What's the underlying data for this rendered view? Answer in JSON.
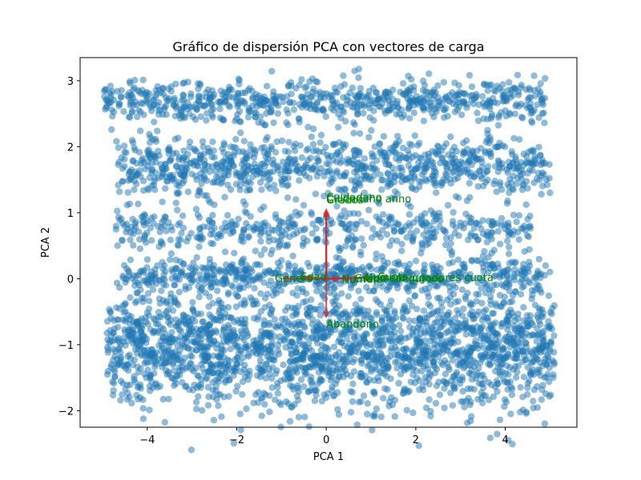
{
  "chart_data": {
    "type": "scatter",
    "title": "Gráfico de dispersión PCA con vectores de carga",
    "xlabel": "PCA 1",
    "ylabel": "PCA 2",
    "xlim": [
      -5.5,
      5.6
    ],
    "ylim": [
      -2.25,
      3.35
    ],
    "xticks": [
      -4,
      -2,
      0,
      2,
      4
    ],
    "yticks": [
      -2,
      -1,
      0,
      1,
      2,
      3
    ],
    "grid": false,
    "colors": {
      "points": "#1f77b4",
      "arrows": "#d62728",
      "labels": "#008000"
    },
    "point_bands": [
      {
        "y_center": 2.7,
        "y_spread": 0.16,
        "x_min": -5.0,
        "x_max": 4.9,
        "count": 700
      },
      {
        "y_center": 1.7,
        "y_spread": 0.22,
        "x_min": -4.7,
        "x_max": 5.0,
        "count": 900
      },
      {
        "y_center": 0.75,
        "y_spread": 0.16,
        "x_min": -4.7,
        "x_max": 4.6,
        "count": 450
      },
      {
        "y_center": 0.05,
        "y_spread": 0.13,
        "x_min": -4.6,
        "x_max": 4.9,
        "count": 550
      },
      {
        "y_center": -1.05,
        "y_spread": 0.45,
        "x_min": -4.9,
        "x_max": 5.1,
        "count": 2200
      }
    ],
    "loadings": [
      {
        "name": "Cuidadano",
        "x": 0.0,
        "y": 1.07
      },
      {
        "name": "Cuidadano anno",
        "x": 0.0,
        "y": 1.05
      },
      {
        "name": "Grados",
        "x": 0.0,
        "y": 1.03
      },
      {
        "name": "Abandono",
        "x": 0.0,
        "y": -0.6
      },
      {
        "name": "Cuota",
        "x": 1.0,
        "y": 0.02
      },
      {
        "name": "Numero jugadores cuota",
        "x": 0.75,
        "y": 0.01
      },
      {
        "name": "Grupo sanguineo",
        "x": 0.55,
        "y": 0.0
      },
      {
        "name": "Numero",
        "x": 0.3,
        "y": -0.01
      },
      {
        "name": "Genero",
        "x": -1.0,
        "y": 0.0
      },
      {
        "name": "Edad",
        "x": -0.5,
        "y": 0.02
      }
    ]
  }
}
